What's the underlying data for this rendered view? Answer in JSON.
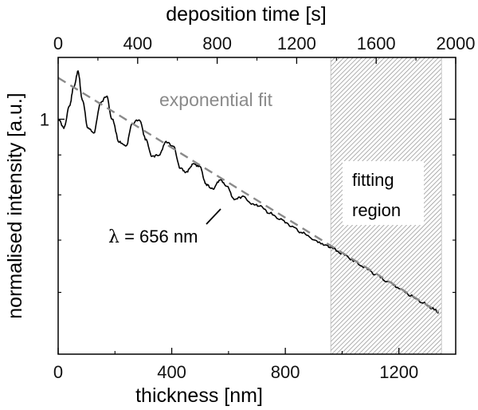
{
  "chart_data": {
    "type": "line",
    "title": "",
    "xlabel": "thickness [nm]",
    "x2label": "deposition time [s]",
    "ylabel": "normalised intensity [a.u.]",
    "xlim": [
      0,
      1400
    ],
    "x2lim": [
      0,
      2000
    ],
    "ylim": [
      0.5,
      1.2
    ],
    "yscale": "log",
    "x_ticks": [
      0,
      400,
      800,
      1200
    ],
    "x2_ticks": [
      0,
      400,
      800,
      1200,
      1600,
      2000
    ],
    "y_ticks": [
      {
        "value": 1.0,
        "label": "1"
      }
    ],
    "grid": false,
    "series": [
      {
        "name": "",
        "style": "solid",
        "color": "#000000",
        "x": [
          0,
          20,
          40,
          55,
          70,
          85,
          105,
          125,
          150,
          170,
          190,
          215,
          240,
          260,
          285,
          310,
          330,
          355,
          380,
          405,
          430,
          450,
          475,
          500,
          520,
          545,
          570,
          595,
          620,
          650,
          680,
          710,
          740,
          780,
          820,
          860,
          900,
          940,
          960,
          1000,
          1040,
          1080,
          1120,
          1160,
          1200,
          1240,
          1280,
          1320,
          1340
        ],
        "y": [
          1.0,
          0.975,
          1.04,
          1.1,
          1.15,
          1.06,
          0.975,
          0.96,
          1.05,
          1.07,
          1.0,
          0.935,
          0.925,
          0.985,
          1.0,
          0.94,
          0.895,
          0.9,
          0.935,
          0.925,
          0.865,
          0.855,
          0.875,
          0.87,
          0.825,
          0.815,
          0.835,
          0.82,
          0.79,
          0.795,
          0.78,
          0.775,
          0.76,
          0.745,
          0.73,
          0.715,
          0.7,
          0.69,
          0.685,
          0.673,
          0.659,
          0.645,
          0.632,
          0.62,
          0.607,
          0.595,
          0.583,
          0.572,
          0.566
        ]
      },
      {
        "name": "exponential fit",
        "style": "dashed",
        "color": "#8a8a8a",
        "x": [
          0,
          1340
        ],
        "y": [
          1.13,
          0.566
        ]
      }
    ],
    "shaded_region": {
      "x_from": 960,
      "x_to": 1350,
      "pattern": "hatched",
      "color": "#999999"
    },
    "annotations": [
      {
        "text": "exponential fit",
        "color": "#8a8a8a"
      },
      {
        "text": "fitting region",
        "lines": [
          "fitting",
          "region"
        ],
        "color": "#000000"
      },
      {
        "text": "λ = 656 nm",
        "prefix": "λ",
        "suffix": " = 656 nm",
        "color": "#000000"
      }
    ]
  }
}
